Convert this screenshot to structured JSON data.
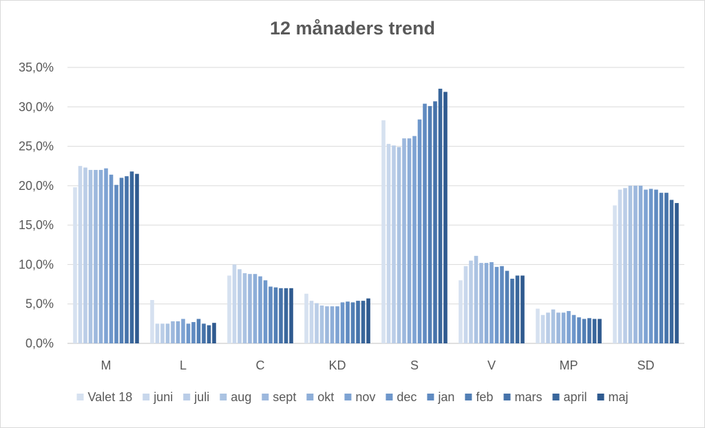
{
  "chart_data": {
    "type": "bar",
    "title": "12 månaders trend",
    "xlabel": "",
    "ylabel": "",
    "ylim": [
      0,
      35
    ],
    "y_ticks": [
      "0,0%",
      "5,0%",
      "10,0%",
      "15,0%",
      "20,0%",
      "25,0%",
      "30,0%",
      "35,0%"
    ],
    "y_tick_values": [
      0,
      5,
      10,
      15,
      20,
      25,
      30,
      35
    ],
    "grid": true,
    "legend_position": "bottom",
    "categories": [
      "M",
      "L",
      "C",
      "KD",
      "S",
      "V",
      "MP",
      "SD"
    ],
    "series": [
      {
        "name": "Valet 18",
        "color": "#d6e1f0",
        "values": [
          19.8,
          5.5,
          8.6,
          6.3,
          28.3,
          8.0,
          4.4,
          17.5
        ]
      },
      {
        "name": "juni",
        "color": "#c8d7ec",
        "values": [
          22.5,
          2.5,
          10.0,
          5.4,
          25.3,
          9.8,
          3.6,
          19.5
        ]
      },
      {
        "name": "juli",
        "color": "#bacde7",
        "values": [
          22.3,
          2.5,
          9.4,
          5.1,
          25.1,
          10.5,
          3.9,
          19.7
        ]
      },
      {
        "name": "aug",
        "color": "#abc3e2",
        "values": [
          22.0,
          2.5,
          8.9,
          4.8,
          24.9,
          11.1,
          4.3,
          20.0
        ]
      },
      {
        "name": "sept",
        "color": "#9db8dd",
        "values": [
          22.0,
          2.8,
          8.8,
          4.7,
          26.0,
          10.2,
          3.9,
          20.0
        ]
      },
      {
        "name": "okt",
        "color": "#8eaed8",
        "values": [
          22.0,
          2.8,
          8.8,
          4.7,
          26.0,
          10.2,
          3.9,
          20.0
        ]
      },
      {
        "name": "nov",
        "color": "#7ea3d3",
        "values": [
          22.2,
          3.1,
          8.5,
          4.7,
          26.3,
          10.3,
          4.1,
          19.5
        ]
      },
      {
        "name": "dec",
        "color": "#6e97cb",
        "values": [
          21.4,
          2.5,
          8.0,
          5.2,
          28.4,
          9.7,
          3.6,
          19.6
        ]
      },
      {
        "name": "jan",
        "color": "#608bc1",
        "values": [
          20.1,
          2.7,
          7.2,
          5.3,
          30.4,
          9.8,
          3.3,
          19.5
        ]
      },
      {
        "name": "feb",
        "color": "#527fb5",
        "values": [
          21.0,
          3.1,
          7.1,
          5.2,
          30.1,
          9.2,
          3.1,
          19.1
        ]
      },
      {
        "name": "mars",
        "color": "#4673aa",
        "values": [
          21.2,
          2.5,
          7.0,
          5.4,
          30.7,
          8.2,
          3.2,
          19.1
        ]
      },
      {
        "name": "april",
        "color": "#3a679c",
        "values": [
          21.8,
          2.3,
          7.0,
          5.4,
          32.3,
          8.6,
          3.1,
          18.2
        ]
      },
      {
        "name": "maj",
        "color": "#2f5a8f",
        "values": [
          21.5,
          2.6,
          7.0,
          5.7,
          31.9,
          8.6,
          3.1,
          17.8
        ]
      }
    ]
  }
}
